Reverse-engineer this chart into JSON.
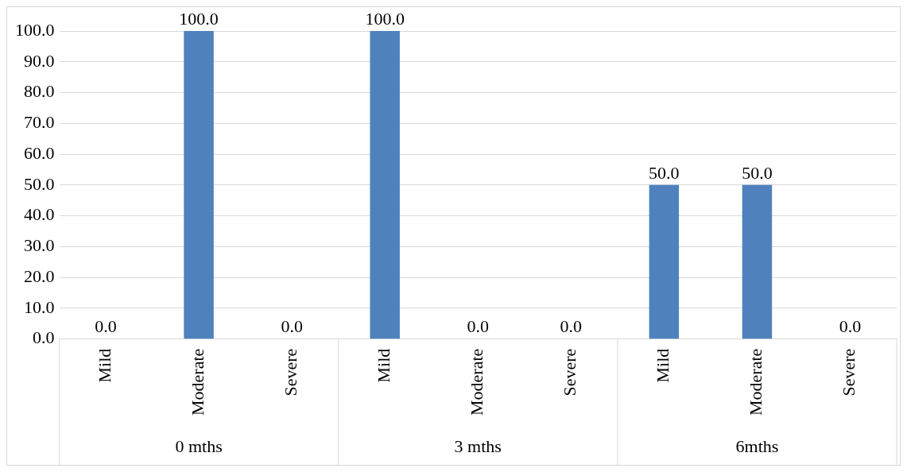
{
  "chart_data": {
    "type": "bar",
    "categories": [
      "Mild",
      "Moderate",
      "Severe",
      "Mild",
      "Moderate",
      "Severe",
      "Mild",
      "Moderate",
      "Severe"
    ],
    "values": [
      0,
      100,
      0,
      100,
      0,
      0,
      50,
      50,
      0
    ],
    "value_labels": [
      "0.0",
      "100.0",
      "0.0",
      "100.0",
      "0.0",
      "0.0",
      "50.0",
      "50.0",
      "0.0"
    ],
    "color": "#4f81bd",
    "ylim": [
      0,
      100
    ],
    "yticks": [
      {
        "value": 0,
        "label": "0.0"
      },
      {
        "value": 10,
        "label": "10.0"
      },
      {
        "value": 20,
        "label": "20.0"
      },
      {
        "value": 30,
        "label": "30.0"
      },
      {
        "value": 40,
        "label": "40.0"
      },
      {
        "value": 50,
        "label": "50.0"
      },
      {
        "value": 60,
        "label": "60.0"
      },
      {
        "value": 70,
        "label": "70.0"
      },
      {
        "value": 80,
        "label": "80.0"
      },
      {
        "value": 90,
        "label": "90.0"
      },
      {
        "value": 100,
        "label": "100.0"
      }
    ],
    "grid": "y",
    "legend": false,
    "annotations": [
      "0 mths",
      "3 mths",
      "6mths"
    ]
  }
}
